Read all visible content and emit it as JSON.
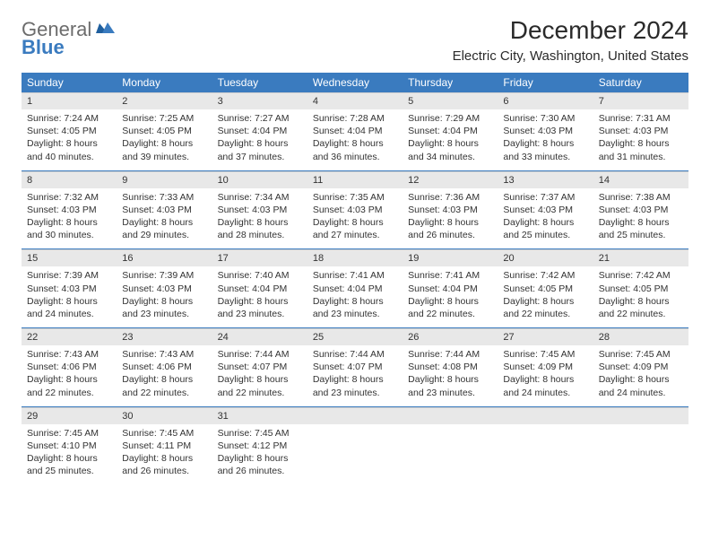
{
  "logo": {
    "text1": "General",
    "text2": "Blue"
  },
  "title": "December 2024",
  "location": "Electric City, Washington, United States",
  "colors": {
    "header_bg": "#3a7bbf",
    "header_text": "#ffffff",
    "daynum_bg": "#e8e8e8",
    "divider": "#3a7bbf",
    "text": "#333333",
    "logo_gray": "#6c6c6c",
    "logo_blue": "#3a7bbf"
  },
  "days_of_week": [
    "Sunday",
    "Monday",
    "Tuesday",
    "Wednesday",
    "Thursday",
    "Friday",
    "Saturday"
  ],
  "weeks": [
    [
      {
        "n": "1",
        "sr": "Sunrise: 7:24 AM",
        "ss": "Sunset: 4:05 PM",
        "dl": "Daylight: 8 hours and 40 minutes."
      },
      {
        "n": "2",
        "sr": "Sunrise: 7:25 AM",
        "ss": "Sunset: 4:05 PM",
        "dl": "Daylight: 8 hours and 39 minutes."
      },
      {
        "n": "3",
        "sr": "Sunrise: 7:27 AM",
        "ss": "Sunset: 4:04 PM",
        "dl": "Daylight: 8 hours and 37 minutes."
      },
      {
        "n": "4",
        "sr": "Sunrise: 7:28 AM",
        "ss": "Sunset: 4:04 PM",
        "dl": "Daylight: 8 hours and 36 minutes."
      },
      {
        "n": "5",
        "sr": "Sunrise: 7:29 AM",
        "ss": "Sunset: 4:04 PM",
        "dl": "Daylight: 8 hours and 34 minutes."
      },
      {
        "n": "6",
        "sr": "Sunrise: 7:30 AM",
        "ss": "Sunset: 4:03 PM",
        "dl": "Daylight: 8 hours and 33 minutes."
      },
      {
        "n": "7",
        "sr": "Sunrise: 7:31 AM",
        "ss": "Sunset: 4:03 PM",
        "dl": "Daylight: 8 hours and 31 minutes."
      }
    ],
    [
      {
        "n": "8",
        "sr": "Sunrise: 7:32 AM",
        "ss": "Sunset: 4:03 PM",
        "dl": "Daylight: 8 hours and 30 minutes."
      },
      {
        "n": "9",
        "sr": "Sunrise: 7:33 AM",
        "ss": "Sunset: 4:03 PM",
        "dl": "Daylight: 8 hours and 29 minutes."
      },
      {
        "n": "10",
        "sr": "Sunrise: 7:34 AM",
        "ss": "Sunset: 4:03 PM",
        "dl": "Daylight: 8 hours and 28 minutes."
      },
      {
        "n": "11",
        "sr": "Sunrise: 7:35 AM",
        "ss": "Sunset: 4:03 PM",
        "dl": "Daylight: 8 hours and 27 minutes."
      },
      {
        "n": "12",
        "sr": "Sunrise: 7:36 AM",
        "ss": "Sunset: 4:03 PM",
        "dl": "Daylight: 8 hours and 26 minutes."
      },
      {
        "n": "13",
        "sr": "Sunrise: 7:37 AM",
        "ss": "Sunset: 4:03 PM",
        "dl": "Daylight: 8 hours and 25 minutes."
      },
      {
        "n": "14",
        "sr": "Sunrise: 7:38 AM",
        "ss": "Sunset: 4:03 PM",
        "dl": "Daylight: 8 hours and 25 minutes."
      }
    ],
    [
      {
        "n": "15",
        "sr": "Sunrise: 7:39 AM",
        "ss": "Sunset: 4:03 PM",
        "dl": "Daylight: 8 hours and 24 minutes."
      },
      {
        "n": "16",
        "sr": "Sunrise: 7:39 AM",
        "ss": "Sunset: 4:03 PM",
        "dl": "Daylight: 8 hours and 23 minutes."
      },
      {
        "n": "17",
        "sr": "Sunrise: 7:40 AM",
        "ss": "Sunset: 4:04 PM",
        "dl": "Daylight: 8 hours and 23 minutes."
      },
      {
        "n": "18",
        "sr": "Sunrise: 7:41 AM",
        "ss": "Sunset: 4:04 PM",
        "dl": "Daylight: 8 hours and 23 minutes."
      },
      {
        "n": "19",
        "sr": "Sunrise: 7:41 AM",
        "ss": "Sunset: 4:04 PM",
        "dl": "Daylight: 8 hours and 22 minutes."
      },
      {
        "n": "20",
        "sr": "Sunrise: 7:42 AM",
        "ss": "Sunset: 4:05 PM",
        "dl": "Daylight: 8 hours and 22 minutes."
      },
      {
        "n": "21",
        "sr": "Sunrise: 7:42 AM",
        "ss": "Sunset: 4:05 PM",
        "dl": "Daylight: 8 hours and 22 minutes."
      }
    ],
    [
      {
        "n": "22",
        "sr": "Sunrise: 7:43 AM",
        "ss": "Sunset: 4:06 PM",
        "dl": "Daylight: 8 hours and 22 minutes."
      },
      {
        "n": "23",
        "sr": "Sunrise: 7:43 AM",
        "ss": "Sunset: 4:06 PM",
        "dl": "Daylight: 8 hours and 22 minutes."
      },
      {
        "n": "24",
        "sr": "Sunrise: 7:44 AM",
        "ss": "Sunset: 4:07 PM",
        "dl": "Daylight: 8 hours and 22 minutes."
      },
      {
        "n": "25",
        "sr": "Sunrise: 7:44 AM",
        "ss": "Sunset: 4:07 PM",
        "dl": "Daylight: 8 hours and 23 minutes."
      },
      {
        "n": "26",
        "sr": "Sunrise: 7:44 AM",
        "ss": "Sunset: 4:08 PM",
        "dl": "Daylight: 8 hours and 23 minutes."
      },
      {
        "n": "27",
        "sr": "Sunrise: 7:45 AM",
        "ss": "Sunset: 4:09 PM",
        "dl": "Daylight: 8 hours and 24 minutes."
      },
      {
        "n": "28",
        "sr": "Sunrise: 7:45 AM",
        "ss": "Sunset: 4:09 PM",
        "dl": "Daylight: 8 hours and 24 minutes."
      }
    ],
    [
      {
        "n": "29",
        "sr": "Sunrise: 7:45 AM",
        "ss": "Sunset: 4:10 PM",
        "dl": "Daylight: 8 hours and 25 minutes."
      },
      {
        "n": "30",
        "sr": "Sunrise: 7:45 AM",
        "ss": "Sunset: 4:11 PM",
        "dl": "Daylight: 8 hours and 26 minutes."
      },
      {
        "n": "31",
        "sr": "Sunrise: 7:45 AM",
        "ss": "Sunset: 4:12 PM",
        "dl": "Daylight: 8 hours and 26 minutes."
      },
      null,
      null,
      null,
      null
    ]
  ]
}
